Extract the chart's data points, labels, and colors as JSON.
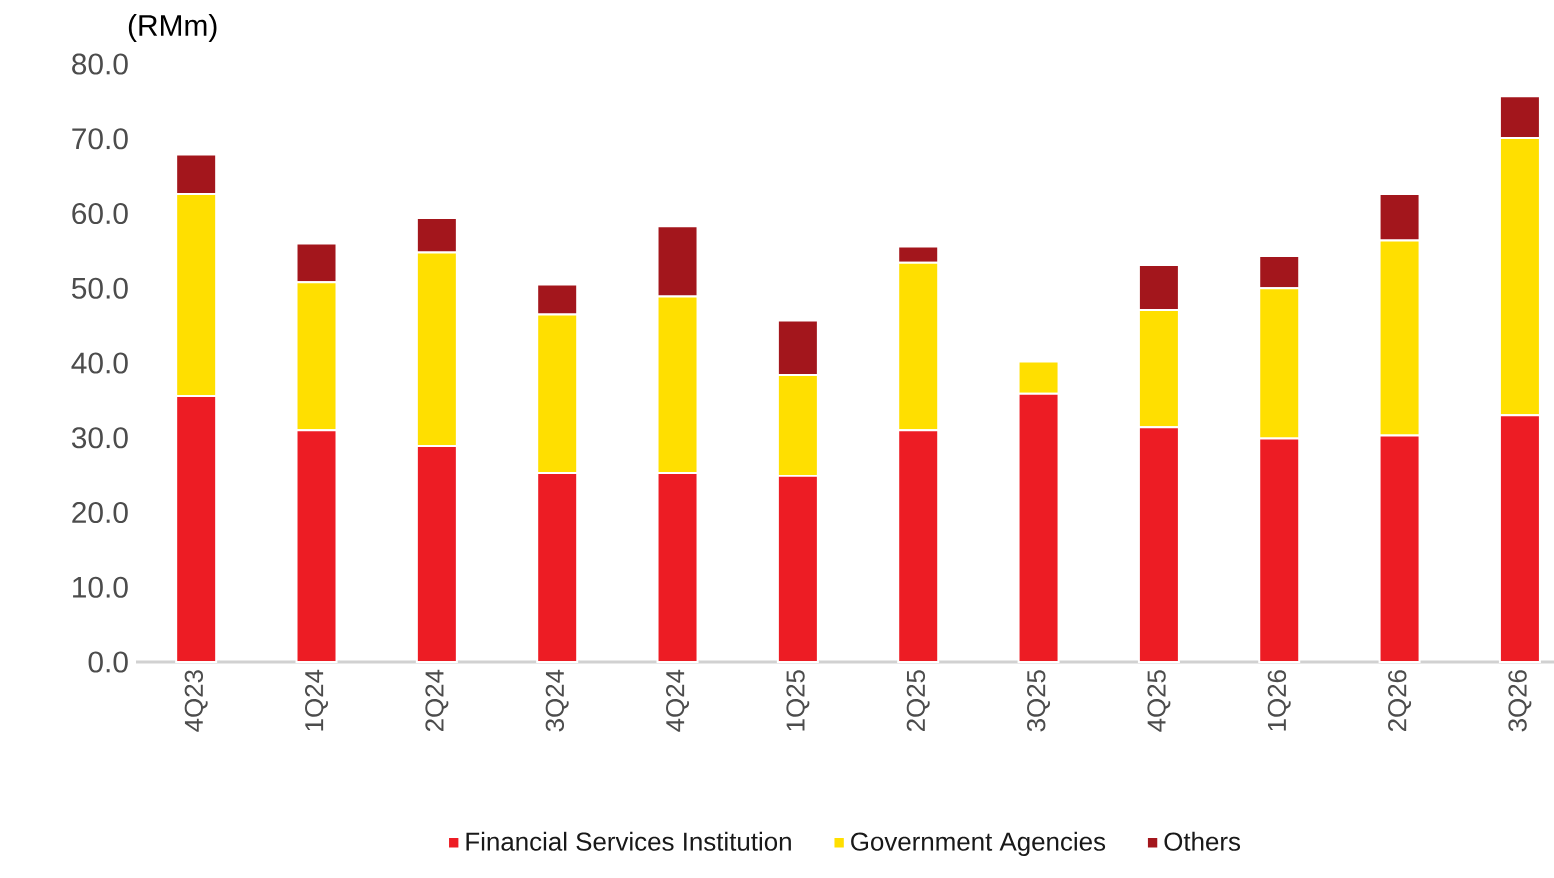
{
  "chart_data": {
    "type": "bar",
    "stacked": true,
    "ylabel": "(RMm)",
    "categories": [
      "4Q23",
      "1Q24",
      "2Q24",
      "3Q24",
      "4Q24",
      "1Q25",
      "2Q25",
      "3Q25",
      "4Q25",
      "1Q26",
      "2Q26",
      "3Q26"
    ],
    "series": [
      {
        "name": "Financial Services Institution",
        "color": "#ed1c24",
        "values": [
          35.6,
          31.0,
          28.9,
          25.3,
          25.3,
          24.9,
          31.0,
          35.9,
          31.4,
          29.9,
          30.3,
          33.0
        ]
      },
      {
        "name": "Government Agencies",
        "color": "#ffdf00",
        "values": [
          27.0,
          19.8,
          25.9,
          21.2,
          23.6,
          13.5,
          22.4,
          4.3,
          15.7,
          20.1,
          26.1,
          37.1
        ]
      },
      {
        "name": "Others",
        "color": "#a3161c",
        "values": [
          5.3,
          5.2,
          4.6,
          4.0,
          9.4,
          7.3,
          2.2,
          null,
          6.0,
          4.3,
          6.2,
          5.6
        ]
      }
    ],
    "ylim": [
      0,
      80
    ],
    "yticks": [
      {
        "value": 0,
        "label": "0.0"
      },
      {
        "value": 10,
        "label": "10.0"
      },
      {
        "value": 20,
        "label": "20.0"
      },
      {
        "value": 30,
        "label": "30.0"
      },
      {
        "value": 40,
        "label": "40.0"
      },
      {
        "value": 50,
        "label": "50.0"
      },
      {
        "value": 60,
        "label": "60.0"
      },
      {
        "value": 70,
        "label": "70.0"
      },
      {
        "value": 80,
        "label": "80.0"
      }
    ],
    "legend": "bottom",
    "grid": false
  }
}
